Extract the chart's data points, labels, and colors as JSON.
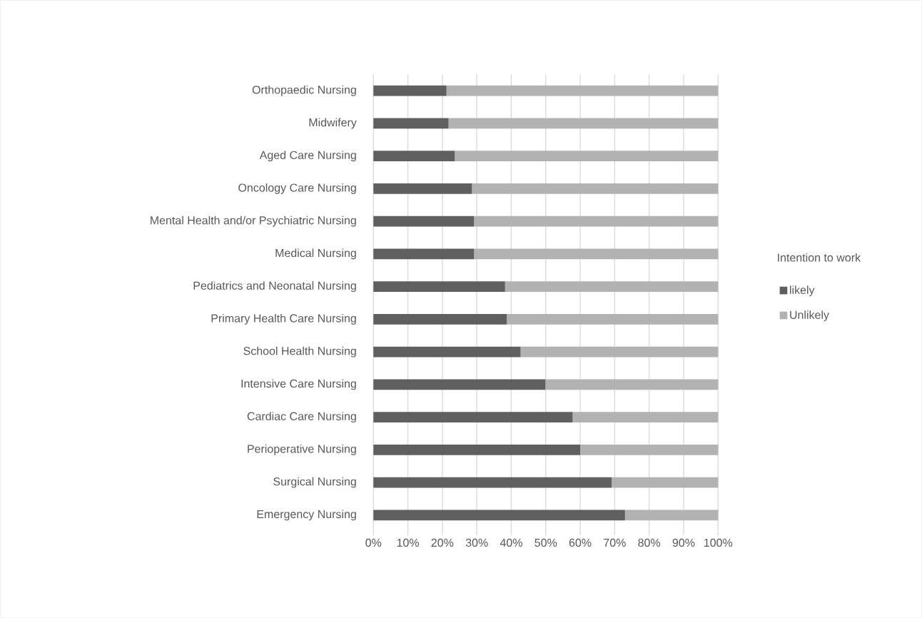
{
  "chart_data": {
    "type": "bar",
    "orientation": "horizontal",
    "stacked": true,
    "categories": [
      "Orthopaedic Nursing",
      "Midwifery",
      "Aged Care Nursing",
      "Oncology Care Nursing",
      "Mental Health and/or Psychiatric Nursing",
      "Medical Nursing",
      "Pediatrics and Neonatal Nursing",
      "Primary Health Care Nursing",
      "School Health Nursing",
      "Intensive Care Nursing",
      "Cardiac Care Nursing",
      "Perioperative Nursing",
      "Surgical Nursing",
      "Emergency Nursing"
    ],
    "series": [
      {
        "name": "likely",
        "color": "#5f5f5f",
        "values": [
          21.2,
          21.8,
          23.6,
          28.6,
          29.2,
          29.2,
          38.2,
          38.7,
          42.7,
          49.9,
          57.8,
          60.0,
          69.1,
          73.0
        ]
      },
      {
        "name": "Unlikely",
        "color": "#b2b2b2",
        "values": [
          78.8,
          78.2,
          76.4,
          71.4,
          70.8,
          70.8,
          61.8,
          61.3,
          57.3,
          50.1,
          42.2,
          40.0,
          30.9,
          27.0
        ]
      }
    ],
    "legend_title": "Intention to work",
    "legend": "right",
    "grid": "x",
    "xlim": [
      0,
      100
    ],
    "xticks": [
      {
        "value": 0,
        "label": "0%"
      },
      {
        "value": 10,
        "label": "10%"
      },
      {
        "value": 20,
        "label": "20%"
      },
      {
        "value": 30,
        "label": "30%"
      },
      {
        "value": 40,
        "label": "40%"
      },
      {
        "value": 50,
        "label": "50%"
      },
      {
        "value": 60,
        "label": "60%"
      },
      {
        "value": 70,
        "label": "70%"
      },
      {
        "value": 80,
        "label": "80%"
      },
      {
        "value": 90,
        "label": "90%"
      },
      {
        "value": 100,
        "label": "100%"
      }
    ]
  }
}
